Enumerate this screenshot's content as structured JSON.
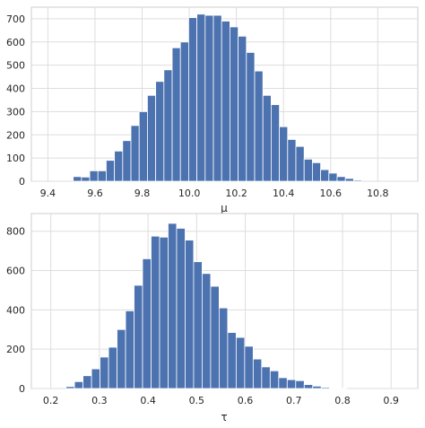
{
  "colors": {
    "bar": "#4c72b0",
    "grid": "#dddddd",
    "background": "#ffffff",
    "axes_edge": "#cccccc",
    "text": "#262626"
  },
  "chart_data": [
    {
      "type": "bar",
      "xlabel": "μ",
      "ylabel": "",
      "title": "",
      "xlim": [
        9.33,
        10.97
      ],
      "ylim": [
        0,
        750
      ],
      "xticks": [
        "9.4",
        "9.6",
        "9.8",
        "10.0",
        "10.2",
        "10.4",
        "10.6",
        "10.8"
      ],
      "yticks": [
        "0",
        "100",
        "200",
        "300",
        "400",
        "500",
        "600",
        "700"
      ],
      "grid": true,
      "bin_width": 0.035,
      "bins": [
        {
          "x": 9.525,
          "count": 20
        },
        {
          "x": 9.56,
          "count": 18
        },
        {
          "x": 9.595,
          "count": 45
        },
        {
          "x": 9.63,
          "count": 45
        },
        {
          "x": 9.665,
          "count": 90
        },
        {
          "x": 9.7,
          "count": 130
        },
        {
          "x": 9.735,
          "count": 175
        },
        {
          "x": 9.77,
          "count": 240
        },
        {
          "x": 9.805,
          "count": 300
        },
        {
          "x": 9.84,
          "count": 370
        },
        {
          "x": 9.875,
          "count": 430
        },
        {
          "x": 9.91,
          "count": 480
        },
        {
          "x": 9.945,
          "count": 575
        },
        {
          "x": 9.98,
          "count": 600
        },
        {
          "x": 10.015,
          "count": 705
        },
        {
          "x": 10.05,
          "count": 720
        },
        {
          "x": 10.085,
          "count": 715
        },
        {
          "x": 10.12,
          "count": 715
        },
        {
          "x": 10.155,
          "count": 690
        },
        {
          "x": 10.19,
          "count": 665
        },
        {
          "x": 10.225,
          "count": 625
        },
        {
          "x": 10.26,
          "count": 555
        },
        {
          "x": 10.295,
          "count": 475
        },
        {
          "x": 10.33,
          "count": 370
        },
        {
          "x": 10.365,
          "count": 330
        },
        {
          "x": 10.4,
          "count": 235
        },
        {
          "x": 10.435,
          "count": 180
        },
        {
          "x": 10.47,
          "count": 150
        },
        {
          "x": 10.505,
          "count": 95
        },
        {
          "x": 10.54,
          "count": 80
        },
        {
          "x": 10.575,
          "count": 50
        },
        {
          "x": 10.61,
          "count": 35
        },
        {
          "x": 10.645,
          "count": 20
        },
        {
          "x": 10.68,
          "count": 12
        },
        {
          "x": 10.715,
          "count": 5
        }
      ]
    },
    {
      "type": "bar",
      "xlabel": "τ",
      "ylabel": "",
      "title": "",
      "xlim": [
        0.16,
        0.955
      ],
      "ylim": [
        0,
        890
      ],
      "xticks": [
        "0.2",
        "0.3",
        "0.4",
        "0.5",
        "0.6",
        "0.7",
        "0.8",
        "0.9"
      ],
      "yticks": [
        "0",
        "200",
        "400",
        "600",
        "800"
      ],
      "grid": true,
      "bin_width": 0.0175,
      "bins": [
        {
          "x": 0.24,
          "count": 10
        },
        {
          "x": 0.2575,
          "count": 35
        },
        {
          "x": 0.275,
          "count": 65
        },
        {
          "x": 0.2925,
          "count": 100
        },
        {
          "x": 0.31,
          "count": 160
        },
        {
          "x": 0.3275,
          "count": 210
        },
        {
          "x": 0.345,
          "count": 300
        },
        {
          "x": 0.3625,
          "count": 395
        },
        {
          "x": 0.38,
          "count": 525
        },
        {
          "x": 0.3975,
          "count": 660
        },
        {
          "x": 0.415,
          "count": 775
        },
        {
          "x": 0.4325,
          "count": 770
        },
        {
          "x": 0.45,
          "count": 840
        },
        {
          "x": 0.4675,
          "count": 815
        },
        {
          "x": 0.485,
          "count": 755
        },
        {
          "x": 0.5025,
          "count": 645
        },
        {
          "x": 0.52,
          "count": 585
        },
        {
          "x": 0.5375,
          "count": 520
        },
        {
          "x": 0.555,
          "count": 410
        },
        {
          "x": 0.5725,
          "count": 285
        },
        {
          "x": 0.59,
          "count": 260
        },
        {
          "x": 0.6075,
          "count": 215
        },
        {
          "x": 0.625,
          "count": 150
        },
        {
          "x": 0.6425,
          "count": 110
        },
        {
          "x": 0.66,
          "count": 90
        },
        {
          "x": 0.6775,
          "count": 55
        },
        {
          "x": 0.695,
          "count": 45
        },
        {
          "x": 0.7125,
          "count": 40
        },
        {
          "x": 0.73,
          "count": 20
        },
        {
          "x": 0.7475,
          "count": 12
        },
        {
          "x": 0.765,
          "count": 6
        },
        {
          "x": 0.7825,
          "count": 3
        },
        {
          "x": 0.8,
          "count": 2
        }
      ]
    }
  ]
}
